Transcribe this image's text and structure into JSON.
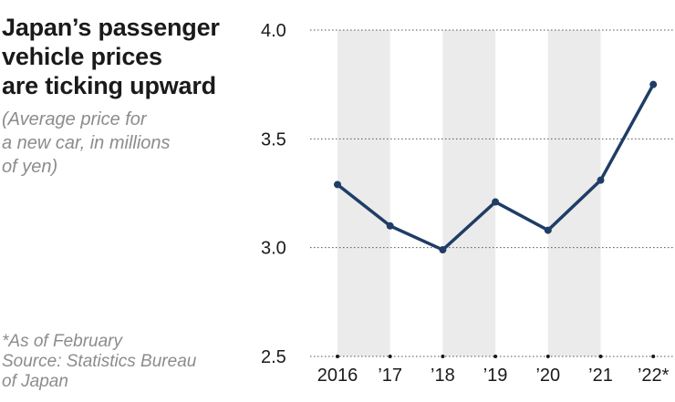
{
  "header": {
    "title_lines": [
      "Japan’s passenger",
      "vehicle prices",
      "are ticking upward"
    ],
    "subtitle_lines": [
      "(Average price for",
      "a new car, in millions",
      "of yen)"
    ]
  },
  "footer": {
    "note": "*As of February",
    "source_lines": [
      "Source: Statistics Bureau",
      "of Japan"
    ]
  },
  "colors": {
    "line": "#1f3d66",
    "band": "#ebebeb",
    "grid": "#555555",
    "text": "#1a1a1a"
  },
  "chart_data": {
    "type": "line",
    "title": "Japan’s passenger vehicle prices are ticking upward",
    "subtitle": "(Average price for a new car, in millions of yen)",
    "categories": [
      "2016",
      "’17",
      "’18",
      "’19",
      "’20",
      "’21",
      "’22*"
    ],
    "series": [
      {
        "name": "Average price for a new car",
        "values": [
          3.29,
          3.1,
          2.99,
          3.21,
          3.08,
          3.31,
          3.75
        ]
      }
    ],
    "y_ticks": [
      "4.0",
      "3.5",
      "3.0",
      "2.5"
    ],
    "y_tick_values": [
      4.0,
      3.5,
      3.0,
      2.5
    ],
    "ylim": [
      2.5,
      4.0
    ],
    "xlabel": "",
    "ylabel": "",
    "grid": true
  }
}
